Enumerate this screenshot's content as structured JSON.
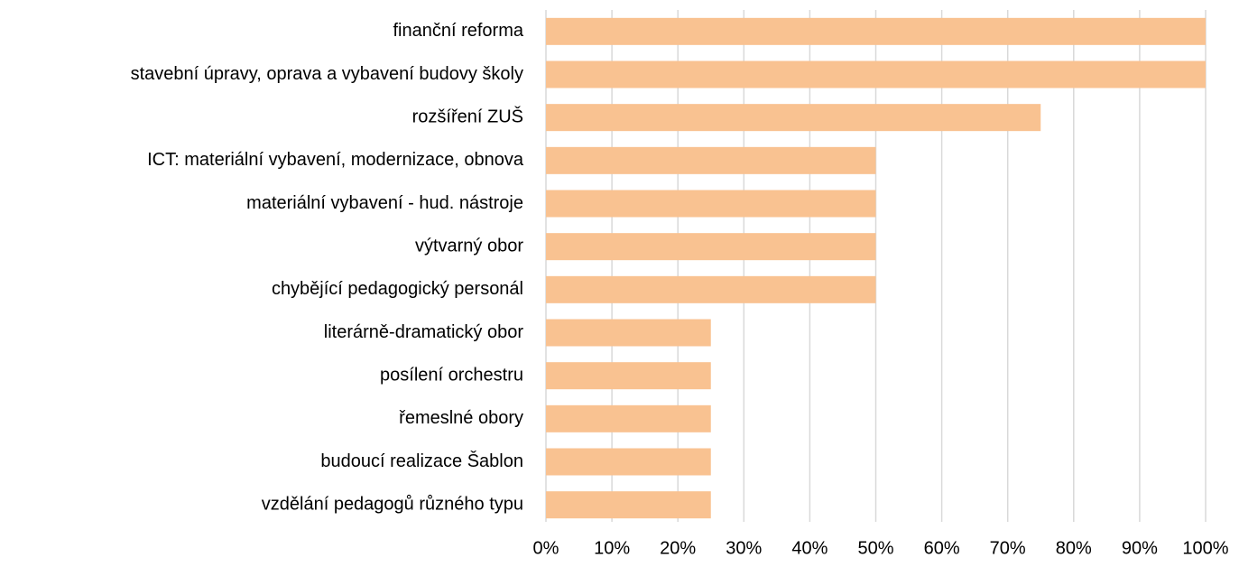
{
  "chart_data": {
    "type": "bar",
    "orientation": "horizontal",
    "categories": [
      "finanční reforma",
      "stavební úpravy, oprava a vybavení budovy školy",
      "rozšíření ZUŠ",
      "ICT: materiální vybavení, modernizace, obnova",
      "materiální vybavení - hud. nástroje",
      "výtvarný obor",
      "chybějící pedagogický personál",
      "literárně-dramatický obor",
      "posílení orchestru",
      "řemeslné obory",
      "budoucí realizace Šablon",
      "vzdělání pedagogů různého typu"
    ],
    "values": [
      100,
      100,
      75,
      50,
      50,
      50,
      50,
      25,
      25,
      25,
      25,
      25
    ],
    "color": "#f9c291",
    "xlim": [
      0,
      100
    ],
    "xticks": [
      {
        "value": 0,
        "label": "0%"
      },
      {
        "value": 10,
        "label": "10%"
      },
      {
        "value": 20,
        "label": "20%"
      },
      {
        "value": 30,
        "label": "30%"
      },
      {
        "value": 40,
        "label": "40%"
      },
      {
        "value": 50,
        "label": "50%"
      },
      {
        "value": 60,
        "label": "60%"
      },
      {
        "value": 70,
        "label": "70%"
      },
      {
        "value": 80,
        "label": "80%"
      },
      {
        "value": 90,
        "label": "90%"
      },
      {
        "value": 100,
        "label": "100%"
      }
    ],
    "grid": true
  }
}
